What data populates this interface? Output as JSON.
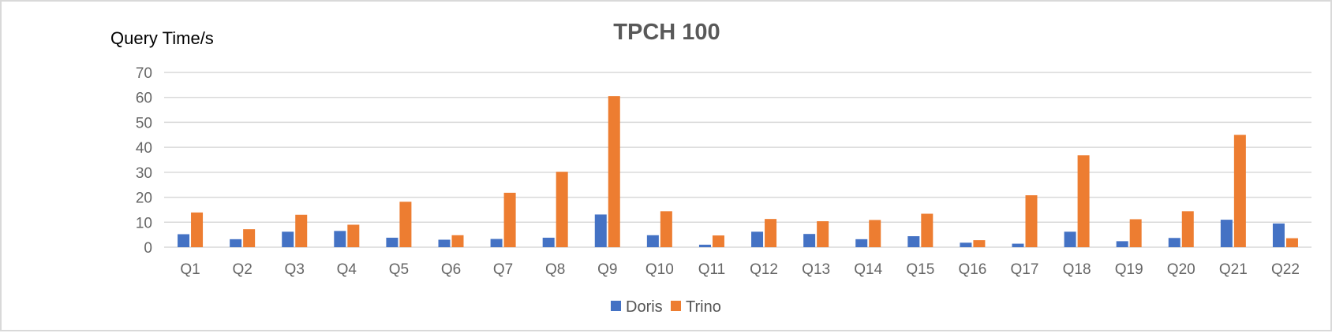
{
  "chart_data": {
    "type": "bar",
    "title": "TPCH 100",
    "ylabel": "Query Time/s",
    "xlabel": "",
    "categories": [
      "Q1",
      "Q2",
      "Q3",
      "Q4",
      "Q5",
      "Q6",
      "Q7",
      "Q8",
      "Q9",
      "Q10",
      "Q11",
      "Q12",
      "Q13",
      "Q14",
      "Q15",
      "Q16",
      "Q17",
      "Q18",
      "Q19",
      "Q20",
      "Q21",
      "Q22"
    ],
    "series": [
      {
        "name": "Doris",
        "color": "#4472C4",
        "values": [
          5.2,
          3.2,
          6.2,
          6.5,
          3.8,
          3.0,
          3.3,
          3.8,
          13.1,
          4.8,
          1.0,
          6.2,
          5.3,
          3.2,
          4.4,
          1.8,
          1.4,
          6.2,
          2.4,
          3.7,
          11.0,
          9.5
        ]
      },
      {
        "name": "Trino",
        "color": "#ED7D31",
        "values": [
          13.9,
          7.2,
          13.0,
          9.0,
          18.2,
          4.8,
          21.8,
          30.2,
          60.5,
          14.4,
          4.7,
          11.3,
          10.4,
          10.9,
          13.4,
          2.8,
          20.8,
          36.8,
          11.2,
          14.4,
          45.0,
          3.6
        ]
      }
    ],
    "yticks": [
      "0",
      "10",
      "20",
      "30",
      "40",
      "50",
      "60",
      "70"
    ],
    "ylim": [
      0,
      70
    ],
    "grid": true,
    "legend": "bottom"
  }
}
